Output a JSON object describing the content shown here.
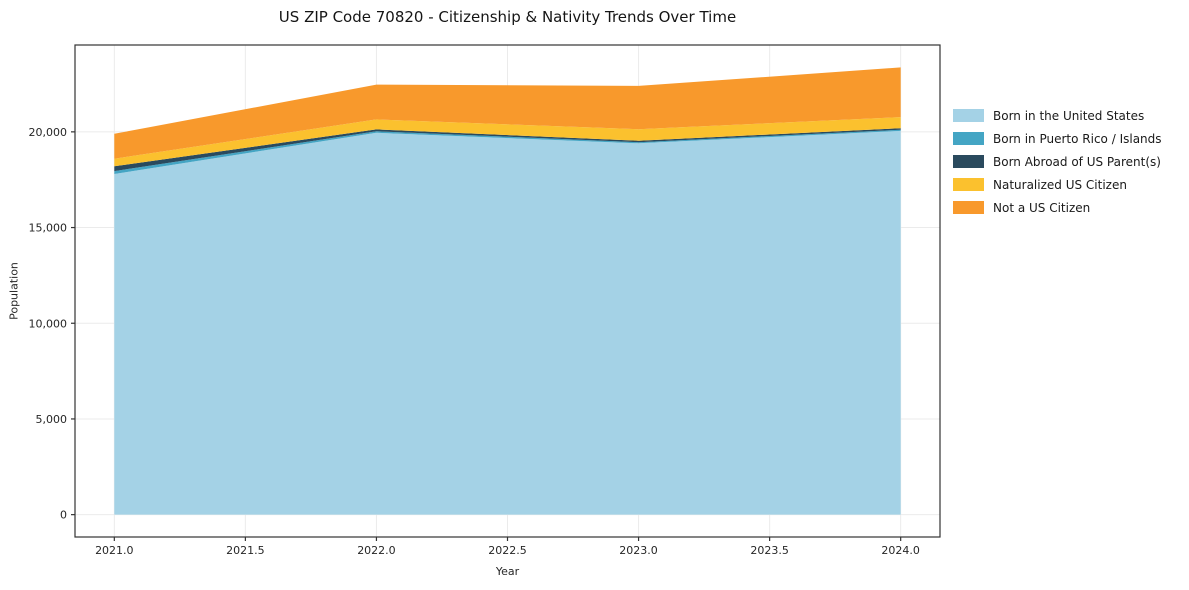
{
  "chart_data": {
    "type": "area",
    "stacked": true,
    "title": "US ZIP Code 70820 - Citizenship & Nativity Trends Over Time",
    "xlabel": "Year",
    "ylabel": "Population",
    "x": [
      2021,
      2022,
      2023,
      2024
    ],
    "series": [
      {
        "name": "Born in the United States",
        "color": "#A4D2E6",
        "values": [
          17800,
          19950,
          19400,
          20050
        ]
      },
      {
        "name": "Born in Puerto Rico / Islands",
        "color": "#44A5C4",
        "values": [
          150,
          80,
          60,
          60
        ]
      },
      {
        "name": "Born Abroad of US Parent(s)",
        "color": "#2A4A5E",
        "values": [
          250,
          100,
          80,
          80
        ]
      },
      {
        "name": "Naturalized US Citizen",
        "color": "#FBC12E",
        "values": [
          400,
          520,
          600,
          580
        ]
      },
      {
        "name": "Not a US Citizen",
        "color": "#F8992C",
        "values": [
          1300,
          1820,
          2260,
          2600
        ]
      }
    ],
    "totals": [
      19900,
      22470,
      22400,
      23370
    ],
    "xlim": [
      2020.85,
      2024.15
    ],
    "ylim": [
      -1168,
      24538
    ],
    "xticks": [
      2021.0,
      2021.5,
      2022.0,
      2022.5,
      2023.0,
      2023.5,
      2024.0
    ],
    "yticks": [
      0,
      5000,
      10000,
      15000,
      20000
    ],
    "grid": true,
    "legend_position": "outside-right"
  },
  "colors": {
    "spine": "#333333",
    "grid": "#ebebeb",
    "tick_label": "#262626"
  }
}
